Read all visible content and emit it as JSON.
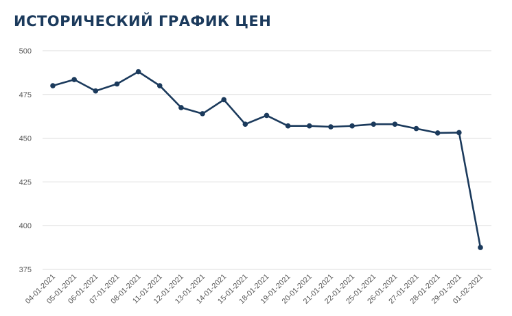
{
  "chart_data": {
    "type": "line",
    "title": "ИСТОРИЧЕСКИЙ ГРАФИК ЦЕН",
    "xlabel": "",
    "ylabel": "",
    "ylim": [
      375,
      500
    ],
    "yticks": [
      375,
      400,
      425,
      450,
      475,
      500
    ],
    "grid": true,
    "legend": "none",
    "categories": [
      "04-01-2021",
      "05-01-2021",
      "06-01-2021",
      "07-01-2021",
      "08-01-2021",
      "11-01-2021",
      "12-01-2021",
      "13-01-2021",
      "14-01-2021",
      "15-01-2021",
      "18-01-2021",
      "19-01-2021",
      "20-01-2021",
      "21-01-2021",
      "22-01-2021",
      "25-01-2021",
      "26-01-2021",
      "27-01-2021",
      "28-01-2021",
      "29-01-2021",
      "01-02-2021"
    ],
    "values": [
      480,
      483.5,
      477,
      481,
      488,
      480,
      467.5,
      464,
      472,
      458,
      463,
      457,
      457,
      456.5,
      457,
      458,
      458,
      455.5,
      453,
      453.2,
      387.5
    ],
    "line_color": "#1b3a5c"
  }
}
